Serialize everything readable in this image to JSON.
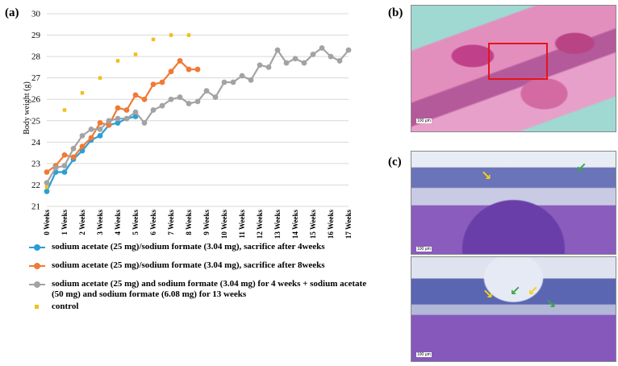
{
  "panels": {
    "a": "(a)",
    "b": "(b)",
    "c": "(c)"
  },
  "chart_data": {
    "type": "line",
    "title": "",
    "xlabel": "",
    "ylabel": "Body weight (g)",
    "ylim": [
      21,
      30
    ],
    "yticks": [
      21,
      22,
      23,
      24,
      25,
      26,
      27,
      28,
      29,
      30
    ],
    "grid": true,
    "legend_position": "bottom",
    "categories": [
      "0 Weeks",
      "1 Weeks",
      "2 Weeks",
      "3 Weeks",
      "4 Weeks",
      "5 Weeks",
      "6 Weeks",
      "7 Weeks",
      "8 Weeks",
      "9 Weeks",
      "10 Weeks",
      "11 Weeks",
      "12 Weeks",
      "13 Weeks",
      "14 Weeks",
      "15 Weeks",
      "16 Weeks",
      "17 Weeks"
    ],
    "series": [
      {
        "name": "sodium acetate (25 mg)/sodium formate (3.04 mg), sacrifice after 4weeks",
        "color": "#2a9fd6",
        "x": [
          0,
          0.5,
          1,
          1.5,
          2,
          2.5,
          3,
          3.5,
          4,
          4.5,
          5
        ],
        "values": [
          21.7,
          22.6,
          22.6,
          23.2,
          23.6,
          24.1,
          24.3,
          24.8,
          24.9,
          25.1,
          25.2
        ]
      },
      {
        "name": "sodium acetate (25 mg)/sodium formate (3.04 mg), sacrifice after 8weeks",
        "color": "#f07a35",
        "x": [
          0,
          0.5,
          1,
          1.5,
          2,
          2.5,
          3,
          3.5,
          4,
          4.5,
          5,
          5.5,
          6,
          6.5,
          7,
          7.5,
          8,
          8.5
        ],
        "values": [
          22.6,
          22.9,
          23.4,
          23.3,
          23.8,
          24.2,
          24.9,
          24.8,
          25.6,
          25.5,
          26.2,
          26.0,
          26.7,
          26.8,
          27.3,
          27.8,
          27.4,
          27.4
        ]
      },
      {
        "name": "sodium acetate (25 mg) and sodium formate (3.04 mg) for 4 weeks + sodium acetate (50 mg) and sodium formate (6.08 mg) for 13 weeks",
        "color": "#a3a3a3",
        "x": [
          0,
          0.5,
          1,
          1.5,
          2,
          2.5,
          3,
          3.5,
          4,
          4.5,
          5,
          5.5,
          6,
          6.5,
          7,
          7.5,
          8,
          8.5,
          9,
          9.5,
          10,
          10.5,
          11,
          11.5,
          12,
          12.5,
          13,
          13.5,
          14,
          14.5,
          15,
          15.5,
          16,
          16.5,
          17
        ],
        "values": [
          22.1,
          22.8,
          22.9,
          23.7,
          24.3,
          24.6,
          24.6,
          25.0,
          25.1,
          25.1,
          25.4,
          24.9,
          25.5,
          25.7,
          26.0,
          26.1,
          25.8,
          25.9,
          26.4,
          26.1,
          26.8,
          26.8,
          27.1,
          26.9,
          27.6,
          27.5,
          28.3,
          27.7,
          27.9,
          27.7,
          28.1,
          28.4,
          28.0,
          27.8,
          28.3
        ]
      },
      {
        "name": "control",
        "color": "#f2c01e",
        "markers_only": true,
        "x": [
          0,
          1,
          2,
          3,
          4,
          5,
          6,
          7,
          8
        ],
        "values": [
          21.9,
          25.5,
          26.3,
          27.0,
          27.8,
          28.1,
          28.8,
          29.0,
          29.0
        ]
      }
    ]
  },
  "micrographs": {
    "b_scale": "100 μm",
    "c_top_scale": "100 μm",
    "c_bottom_scale": "100 μm"
  },
  "colors": {
    "roi": "#e5141a",
    "arrow_yellow": "#f2d21e",
    "arrow_green": "#3aa64a"
  }
}
